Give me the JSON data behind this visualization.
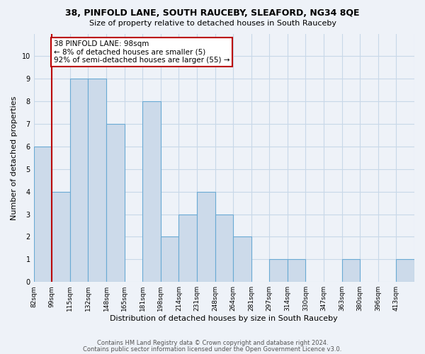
{
  "title": "38, PINFOLD LANE, SOUTH RAUCEBY, SLEAFORD, NG34 8QE",
  "subtitle": "Size of property relative to detached houses in South Rauceby",
  "xlabel": "Distribution of detached houses by size in South Rauceby",
  "ylabel": "Number of detached properties",
  "footer1": "Contains HM Land Registry data © Crown copyright and database right 2024.",
  "footer2": "Contains public sector information licensed under the Open Government Licence v3.0.",
  "categories": [
    "82sqm",
    "99sqm",
    "115sqm",
    "132sqm",
    "148sqm",
    "165sqm",
    "181sqm",
    "198sqm",
    "214sqm",
    "231sqm",
    "248sqm",
    "264sqm",
    "281sqm",
    "297sqm",
    "314sqm",
    "330sqm",
    "347sqm",
    "363sqm",
    "380sqm",
    "396sqm",
    "413sqm"
  ],
  "values": [
    6,
    4,
    9,
    9,
    7,
    0,
    8,
    2,
    3,
    4,
    3,
    2,
    0,
    1,
    1,
    0,
    0,
    1,
    0,
    0,
    1
  ],
  "bar_color": "#ccdaea",
  "bar_edge_color": "#6aaad4",
  "grid_color": "#c8d8e8",
  "annotation_box_text": "38 PINFOLD LANE: 98sqm\n← 8% of detached houses are smaller (5)\n92% of semi-detached houses are larger (55) →",
  "annotation_box_color": "#ffffff",
  "annotation_box_edge_color": "#bb0000",
  "vline_color": "#bb0000",
  "vline_x_idx": 1,
  "ylim": [
    0,
    11
  ],
  "yticks": [
    0,
    1,
    2,
    3,
    4,
    5,
    6,
    7,
    8,
    9,
    10,
    11
  ],
  "background_color": "#eef2f8",
  "title_fontsize": 9,
  "subtitle_fontsize": 8
}
